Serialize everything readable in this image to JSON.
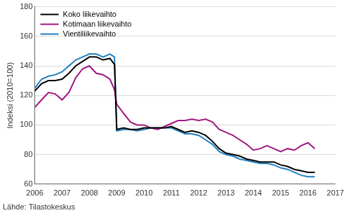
{
  "chart_data": {
    "type": "line",
    "y_label": "Indeksi (2010=100)",
    "source": "Lähde: Tilastokeskus",
    "x": [
      2006,
      2006.25,
      2006.5,
      2006.75,
      2007,
      2007.25,
      2007.5,
      2007.75,
      2008,
      2008.25,
      2008.5,
      2008.75,
      2008.917,
      2009,
      2009.25,
      2009.5,
      2009.75,
      2010,
      2010.25,
      2010.5,
      2010.75,
      2011,
      2011.25,
      2011.5,
      2011.75,
      2012,
      2012.25,
      2012.5,
      2012.75,
      2013,
      2013.25,
      2013.5,
      2013.75,
      2014,
      2014.25,
      2014.5,
      2014.75,
      2015,
      2015.25,
      2015.5,
      2015.75,
      2016,
      2016.25
    ],
    "series": [
      {
        "name": "Koko liikevaihto",
        "color": "#000000",
        "values": [
          123,
          128,
          130,
          130,
          131,
          135,
          140,
          143,
          146,
          146,
          144,
          145,
          141,
          97,
          98,
          97,
          97,
          98,
          98,
          98,
          98,
          99,
          97,
          95,
          96,
          95,
          93,
          89,
          84,
          81,
          80,
          79,
          77,
          76,
          75,
          75,
          75,
          73,
          72,
          70,
          69,
          68,
          68
        ]
      },
      {
        "name": "Kotimaan liikevaihto",
        "color": "#a0167e",
        "values": [
          112,
          117,
          122,
          121,
          117,
          122,
          132,
          138,
          140,
          135,
          134,
          131,
          124,
          114,
          108,
          102,
          100,
          100,
          98,
          97,
          99,
          101,
          103,
          103,
          104,
          103,
          104,
          102,
          97,
          95,
          93,
          90,
          87,
          83,
          84,
          86,
          84,
          82,
          84,
          83,
          86,
          88,
          84
        ]
      },
      {
        "name": "Vientiliikevaihto",
        "color": "#1f7fbf",
        "values": [
          125,
          131,
          133,
          134,
          136,
          140,
          144,
          146,
          148,
          148,
          146,
          148,
          146,
          96,
          97,
          97,
          96,
          97,
          98,
          98,
          98,
          98,
          96,
          94,
          94,
          93,
          90,
          87,
          82,
          80,
          79,
          77,
          76,
          75,
          74,
          74,
          73,
          71,
          70,
          68,
          66,
          65,
          65
        ]
      }
    ],
    "xlim": [
      2006,
      2017
    ],
    "xticks": [
      2006,
      2007,
      2008,
      2009,
      2010,
      2011,
      2012,
      2013,
      2014,
      2015,
      2016,
      2017
    ],
    "ylim": [
      60,
      180
    ],
    "yticks": [
      60,
      80,
      100,
      120,
      140,
      160,
      180
    ],
    "grid": true,
    "legend": "upper left"
  }
}
